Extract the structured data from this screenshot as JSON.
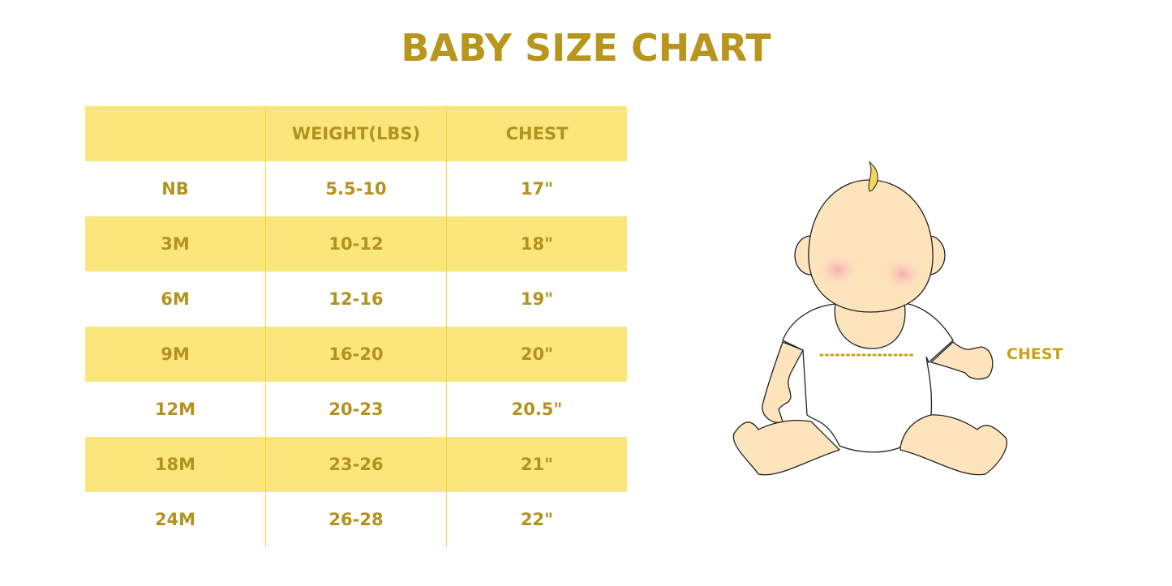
{
  "title": "BABY SIZE CHART",
  "table": {
    "headers": [
      "",
      "WEIGHT(LBS)",
      "CHEST"
    ],
    "rows": [
      [
        "NB",
        "5.5-10",
        "17\""
      ],
      [
        "3M",
        "10-12",
        "18\""
      ],
      [
        "6M",
        "12-16",
        "19\""
      ],
      [
        "9M",
        "16-20",
        "20\""
      ],
      [
        "12M",
        "20-23",
        "20.5\""
      ],
      [
        "18M",
        "23-26",
        "21\""
      ],
      [
        "24M",
        "26-28",
        "22\""
      ]
    ]
  },
  "illustration": {
    "label": "CHEST"
  },
  "colors": {
    "accent": "#b8961d",
    "row_fill": "#fbe67b",
    "skin": "#fde4bd"
  }
}
